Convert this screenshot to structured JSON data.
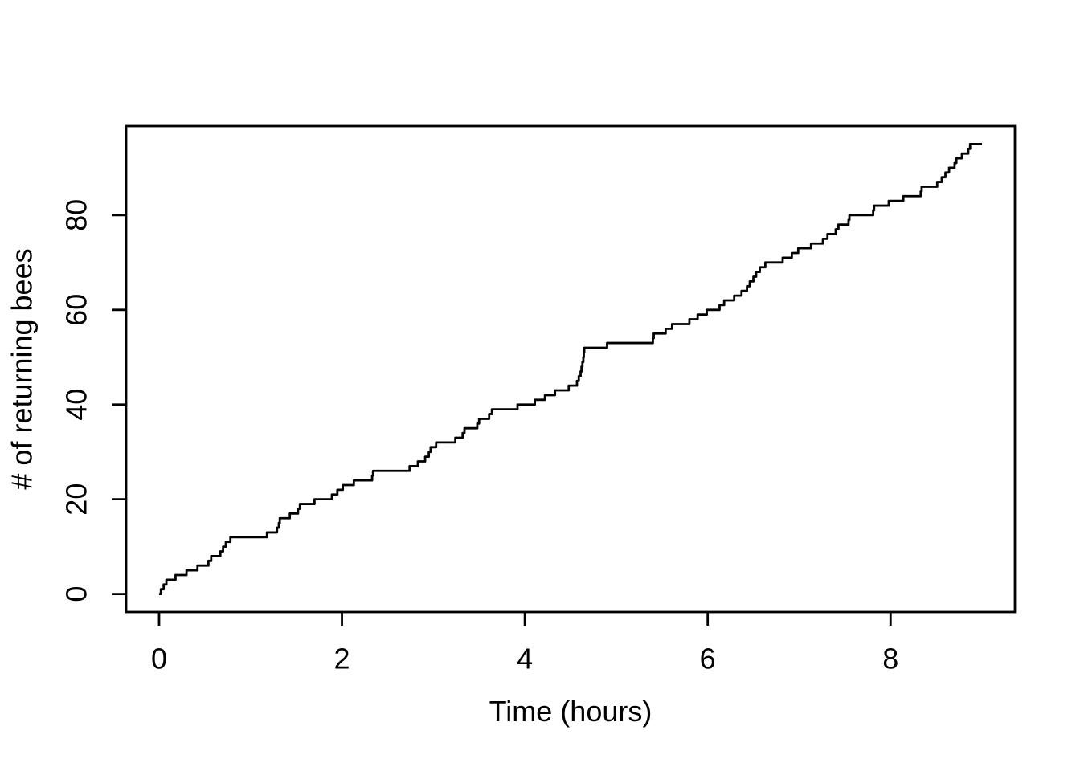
{
  "figure": {
    "background": "#ffffff",
    "foreground": "#000000"
  },
  "chart_data": {
    "type": "line",
    "step": true,
    "description": "Cumulative counting-process step curve of bees returning to hive over time (R base graphics style)",
    "title": "",
    "xlabel": "Time (hours)",
    "ylabel": "# of returning bees",
    "x_ticks": [
      0,
      2,
      4,
      6,
      8
    ],
    "y_ticks": [
      0,
      20,
      40,
      60,
      80
    ],
    "xlim": [
      -0.36,
      9.36
    ],
    "ylim": [
      -3.8,
      98.8
    ],
    "grid": false,
    "legend": false,
    "line_color": "#000000",
    "plot_background": "#ffffff",
    "series": [
      {
        "name": "cumulative returning bees",
        "start_time_hours": 0,
        "start_count": 0,
        "final_count": 95,
        "end_time_hours": 9.0,
        "event_times_hours": [
          0.02,
          0.05,
          0.08,
          0.18,
          0.3,
          0.42,
          0.54,
          0.57,
          0.67,
          0.7,
          0.73,
          0.78,
          1.18,
          1.29,
          1.31,
          1.32,
          1.43,
          1.52,
          1.54,
          1.7,
          1.89,
          1.95,
          2.01,
          2.13,
          2.33,
          2.34,
          2.74,
          2.83,
          2.91,
          2.95,
          2.97,
          3.03,
          3.24,
          3.32,
          3.34,
          3.48,
          3.5,
          3.61,
          3.64,
          3.92,
          4.11,
          4.22,
          4.33,
          4.48,
          4.57,
          4.59,
          4.61,
          4.62,
          4.63,
          4.64,
          4.645,
          4.65,
          4.9,
          5.4,
          5.41,
          5.54,
          5.61,
          5.8,
          5.89,
          5.99,
          6.13,
          6.18,
          6.29,
          6.37,
          6.43,
          6.46,
          6.5,
          6.53,
          6.57,
          6.63,
          6.82,
          6.92,
          6.99,
          7.13,
          7.26,
          7.31,
          7.4,
          7.43,
          7.54,
          7.55,
          7.81,
          7.82,
          7.98,
          8.14,
          8.33,
          8.34,
          8.51,
          8.56,
          8.6,
          8.64,
          8.7,
          8.72,
          8.78,
          8.85,
          8.87
        ]
      }
    ]
  }
}
